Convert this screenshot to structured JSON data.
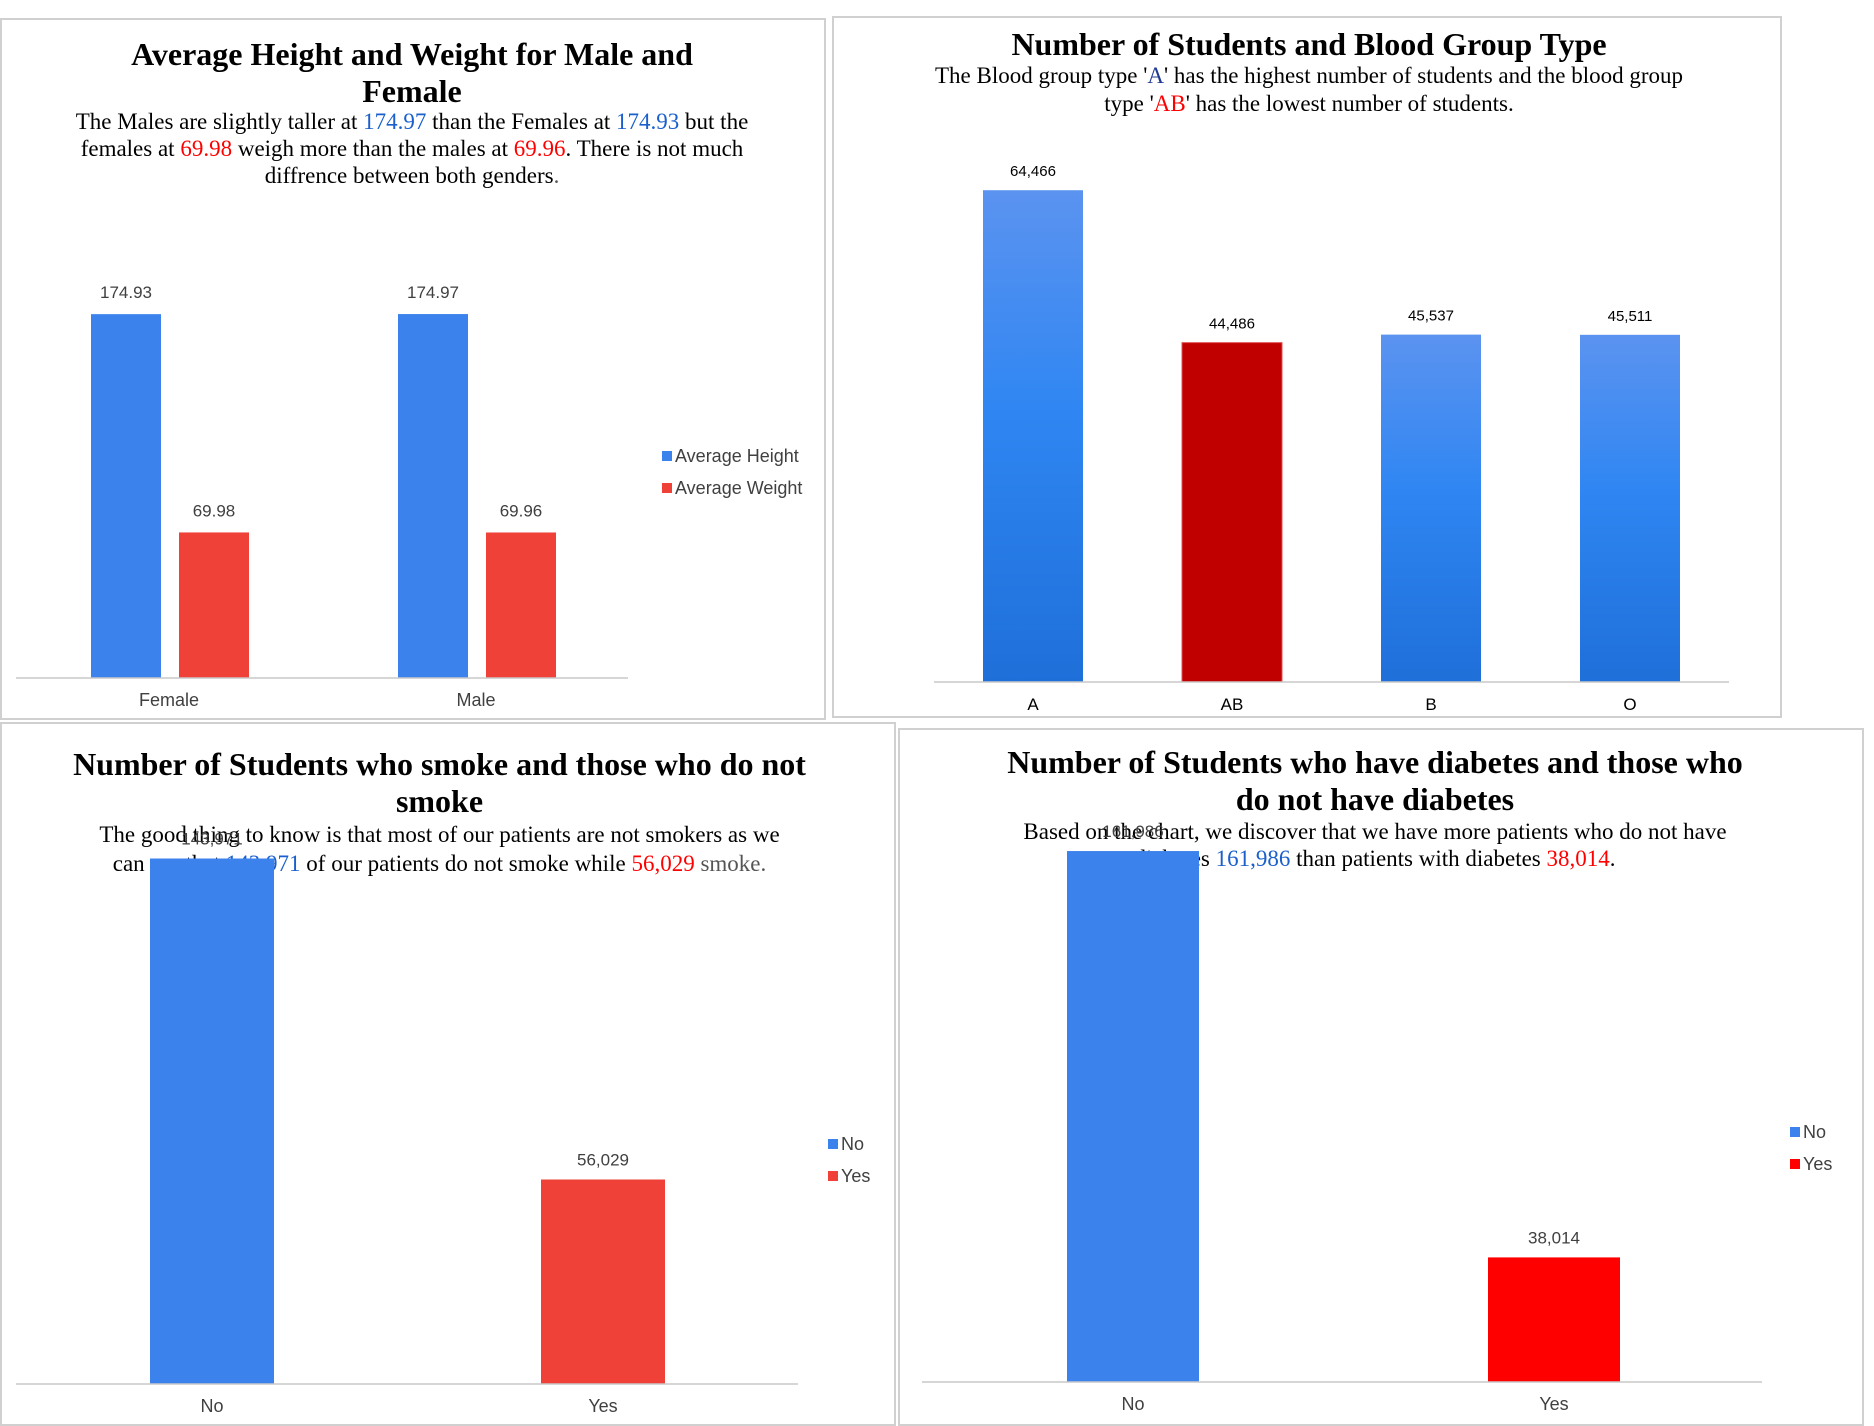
{
  "colors": {
    "blue": "#3b82ec",
    "red": "#ef4137",
    "pure_red": "#ff0000",
    "dark_red": "#c00000",
    "gradient_top": "#5b93f0",
    "gradient_mid": "#2f86f2",
    "gradient_bottom": "#1f6fd9",
    "axis": "#c8c8c8"
  },
  "panels": {
    "height_weight": {
      "title": "Average Height and Weight for Male and Female",
      "subtitle": {
        "s1": "The Males are slightly taller at ",
        "v1": "174.97",
        "s2": " than the Females at ",
        "v2": "174.93",
        "s3": " but the females at ",
        "v3": "69.98",
        "s4": " weigh more than the males at ",
        "v4": "69.96",
        "s5": ". There is not much diffrence between both genders",
        "s6": "."
      },
      "legend": [
        "Average Height",
        "Average Weight"
      ]
    },
    "blood_group": {
      "title": "Number of Students and Blood Group Type",
      "subtitle": {
        "s1": "The Blood group type '",
        "v1": "A",
        "s2": "' has the highest number of students and the blood group type '",
        "v2": "AB",
        "s3": "' has the lowest number of students."
      }
    },
    "smoking": {
      "title": "Number of Students who smoke and those who do not smoke",
      "subtitle": {
        "s1": "The good thing to know is that most of our patients are not smokers as we can see that ",
        "v1": "143,971",
        "s2": " of our patients do not smoke while ",
        "v2": "56,029",
        "s3": " smoke."
      },
      "legend": [
        "No",
        "Yes"
      ]
    },
    "diabetes": {
      "title": "Number of Students who have diabetes and those who do not have diabetes",
      "subtitle": {
        "s1": "Based on the chart, we discover that we have more patients who do not have diabetes ",
        "v1": "161,986",
        "s2": " than patients with diabetes ",
        "v2": "38,014",
        "s3": "."
      },
      "legend": [
        "No",
        "Yes"
      ]
    }
  },
  "chart_data": [
    {
      "type": "bar",
      "title": "Average Height and Weight for Male and Female",
      "categories": [
        "Female",
        "Male"
      ],
      "series": [
        {
          "name": "Average Height",
          "values": [
            174.93,
            174.97
          ],
          "labels": [
            "174.93",
            "174.97"
          ]
        },
        {
          "name": "Average Weight",
          "values": [
            69.98,
            69.96
          ],
          "labels": [
            "69.98",
            "69.96"
          ]
        }
      ],
      "ylim": [
        0,
        200
      ],
      "legend": "right",
      "grid": false
    },
    {
      "type": "bar",
      "title": "Number of Students and Blood Group Type",
      "categories": [
        "A",
        "AB",
        "B",
        "O"
      ],
      "values": [
        64466,
        44486,
        45537,
        45511
      ],
      "labels": [
        "64,466",
        "44,486",
        "45,537",
        "45,511"
      ],
      "highlight": "AB",
      "ylim": [
        0,
        70000
      ],
      "grid": false
    },
    {
      "type": "bar",
      "title": "Number of Students who smoke and those who do not smoke",
      "categories": [
        "No",
        "Yes"
      ],
      "values": [
        143971,
        56029
      ],
      "labels": [
        "143,971",
        "56,029"
      ],
      "ylim": [
        0,
        160000
      ],
      "legend": "right",
      "grid": false
    },
    {
      "type": "bar",
      "title": "Number of Students who have diabetes and those who do not have diabetes",
      "categories": [
        "No",
        "Yes"
      ],
      "values": [
        161986,
        38014
      ],
      "labels": [
        "161,986",
        "38,014"
      ],
      "ylim": [
        0,
        180000
      ],
      "legend": "right",
      "grid": false
    }
  ]
}
